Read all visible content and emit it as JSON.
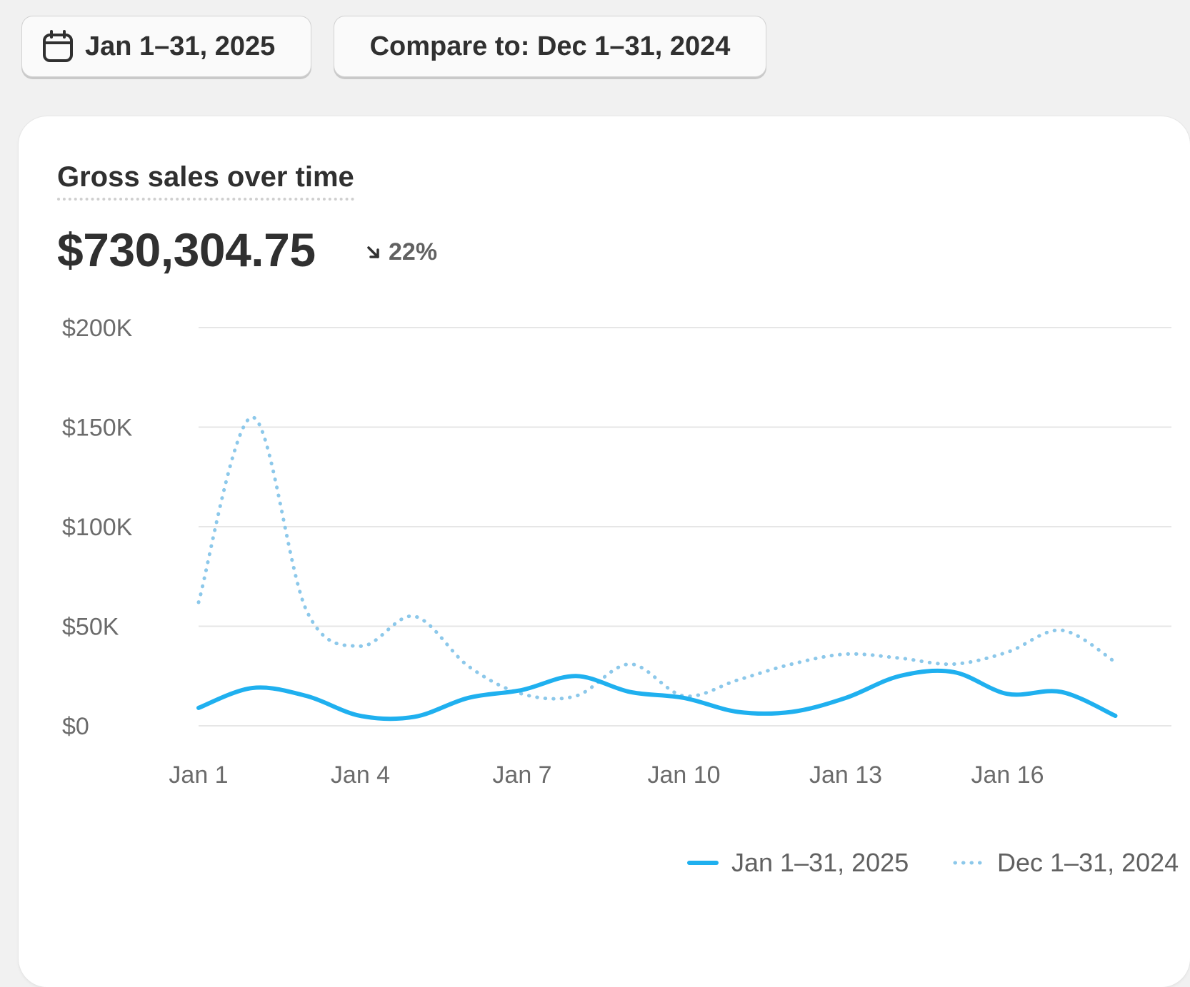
{
  "toolbar": {
    "date_range_label": "Jan 1–31, 2025",
    "compare_label": "Compare to: Dec 1–31, 2024",
    "calendar_icon": "calendar-icon"
  },
  "card": {
    "title": "Gross sales over time",
    "total": "$730,304.75",
    "change": "22%",
    "change_direction": "down",
    "change_icon": "arrow-down-right-icon"
  },
  "legend": {
    "current": "Jan 1–31, 2025",
    "compare": "Dec 1–31, 2024"
  },
  "colors": {
    "current": "#1fb0ef",
    "compare": "#8cc8ea",
    "grid": "#e6e6e6"
  },
  "chart_data": {
    "type": "line",
    "title": "Gross sales over time",
    "xlabel": "",
    "ylabel": "",
    "x": [
      "Jan 1",
      "Jan 2",
      "Jan 3",
      "Jan 4",
      "Jan 5",
      "Jan 6",
      "Jan 7",
      "Jan 8",
      "Jan 9",
      "Jan 10",
      "Jan 11",
      "Jan 12",
      "Jan 13",
      "Jan 14",
      "Jan 15",
      "Jan 16",
      "Jan 17",
      "Jan 18"
    ],
    "x_tick_labels": [
      "Jan 1",
      "Jan 4",
      "Jan 7",
      "Jan 10",
      "Jan 13",
      "Jan 16"
    ],
    "y_ticks": [
      0,
      50000,
      100000,
      150000,
      200000
    ],
    "y_tick_labels": [
      "$0",
      "$50K",
      "$100K",
      "$150K",
      "$200K"
    ],
    "ylim": [
      0,
      200000
    ],
    "grid": true,
    "legend_position": "bottom",
    "series": [
      {
        "name": "Jan 1–31, 2025",
        "style": "solid",
        "values": [
          9000,
          19000,
          15000,
          5000,
          4500,
          14000,
          18000,
          25000,
          17000,
          14000,
          7000,
          7000,
          14000,
          25000,
          27000,
          16000,
          17000,
          5000
        ]
      },
      {
        "name": "Dec 1–31, 2024",
        "style": "dotted",
        "values": [
          62000,
          155000,
          58000,
          40000,
          55000,
          30000,
          16000,
          15000,
          31000,
          15000,
          23000,
          31000,
          36000,
          34000,
          31000,
          37000,
          48000,
          32000
        ]
      }
    ]
  }
}
